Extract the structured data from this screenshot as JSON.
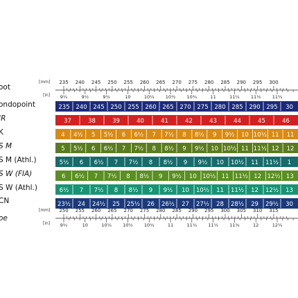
{
  "top_ruler": {
    "unit_mm": "[mm]",
    "unit_in": "[in]",
    "mm_ticks": [
      "235",
      "240",
      "245",
      "250",
      "255",
      "260",
      "265",
      "270",
      "275",
      "280",
      "285",
      "290",
      "295",
      "300"
    ],
    "in_ticks": [
      "9¼",
      "9½",
      "9¾",
      "10",
      "10¼",
      "10½",
      "10¾",
      "11",
      "11¼",
      "11½",
      "11¾"
    ]
  },
  "bottom_ruler": {
    "unit_mm": "[mm]",
    "unit_in": "[in]",
    "mm_ticks": [
      "250",
      "255",
      "260",
      "265",
      "270",
      "275",
      "280",
      "285",
      "290",
      "295",
      "300",
      "305",
      "310",
      "315"
    ],
    "in_ticks": [
      "9¾",
      "10",
      "10¼",
      "10½",
      "10¾",
      "11",
      "11¼",
      "11½",
      "11¾",
      "12",
      "12¼"
    ]
  },
  "rows": [
    {
      "label": "oot",
      "italic": false,
      "color": "#ffffff",
      "cells": []
    },
    {
      "label": "ondopoint",
      "italic": false,
      "color": "#1b2a7a",
      "cells": [
        "235",
        "240",
        "245",
        "250",
        "255",
        "260",
        "265",
        "270",
        "275",
        "280",
        "285",
        "290",
        "295",
        "30"
      ]
    },
    {
      "label": "JR",
      "italic": true,
      "color": "#d42020",
      "cells": [
        "37",
        "38",
        "39",
        "40",
        "41",
        "42",
        "43",
        "44",
        "45",
        "46"
      ]
    },
    {
      "label": "K",
      "italic": false,
      "color": "#d98a12",
      "cells": [
        "4",
        "4½",
        "5",
        "5½",
        "6",
        "6½",
        "7",
        "7½",
        "8",
        "8½",
        "9",
        "9½",
        "10",
        "10½",
        "11",
        "11"
      ]
    },
    {
      "label": "S M",
      "italic": true,
      "color": "#5a7c1e",
      "cells": [
        "5",
        "5½",
        "6",
        "6½",
        "7",
        "7½",
        "8",
        "8½",
        "9",
        "9½",
        "10",
        "10½",
        "11",
        "11½",
        "12",
        "12"
      ]
    },
    {
      "label": "S M (Athl.)",
      "italic": false,
      "color": "#166b6b",
      "cells": [
        "5½",
        "6",
        "6½",
        "7",
        "7½",
        "8",
        "8½",
        "9",
        "9½",
        "10",
        "10½",
        "11",
        "11½",
        "1"
      ]
    },
    {
      "label": "S W (FIA)",
      "italic": true,
      "color": "#5a8f22",
      "cells": [
        "6",
        "6½",
        "7",
        "7½",
        "8",
        "8½",
        "9",
        "9½",
        "10",
        "10½",
        "11",
        "11½",
        "12",
        "12½",
        "13"
      ]
    },
    {
      "label": "S W (Athl.)",
      "italic": false,
      "color": "#179474",
      "cells": [
        "6½",
        "7",
        "7½",
        "8",
        "8½",
        "9",
        "9½",
        "10",
        "10½",
        "11",
        "11½",
        "12",
        "12½",
        "13"
      ]
    },
    {
      "label": "CN",
      "italic": false,
      "color": "#1b3a7a",
      "cells": [
        "23½",
        "24",
        "24½",
        "25",
        "25½",
        "26",
        "26½",
        "27",
        "27½",
        "28",
        "28½",
        "29",
        "29½",
        "30"
      ]
    },
    {
      "label": "oe",
      "italic": true,
      "color": "#ffffff",
      "cells": []
    }
  ]
}
